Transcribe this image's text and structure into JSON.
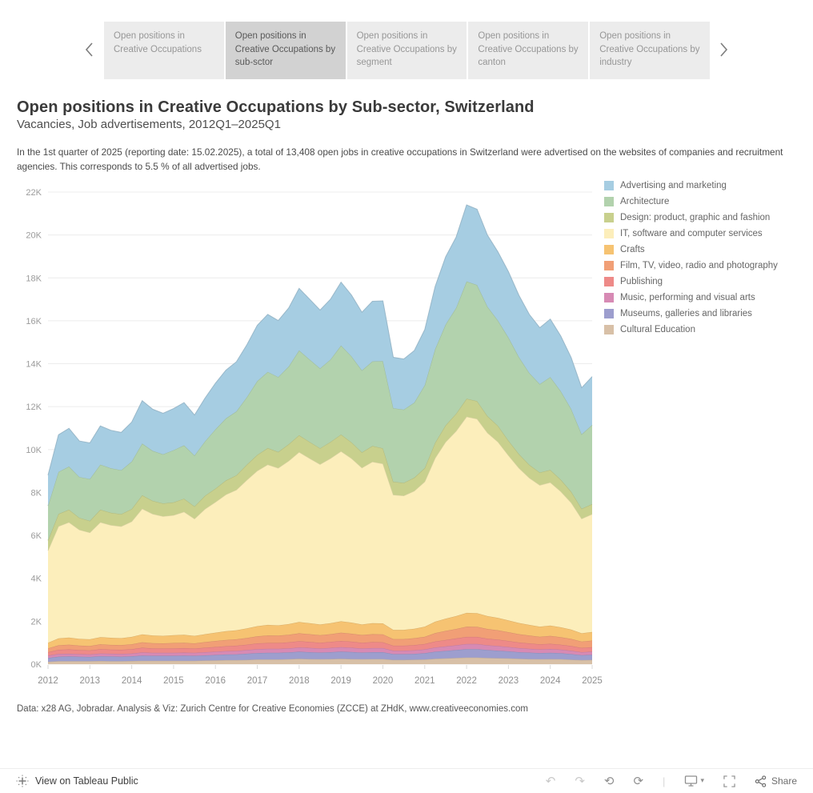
{
  "tab_bar": {
    "tabs": [
      {
        "label": "Open positions in Creative Occupations",
        "active": false
      },
      {
        "label": "Open positions in Creative Occupations by sub-sctor",
        "active": true
      },
      {
        "label": "Open positions in Creative Occupations by segment",
        "active": false
      },
      {
        "label": "Open positions in Creative Occupations by canton",
        "active": false
      },
      {
        "label": "Open positions in Creative Occupations by industry",
        "active": false
      }
    ]
  },
  "header": {
    "title": "Open positions in Creative Occupations by Sub-sector, Switzerland",
    "subtitle": "Vacancies, Job advertisements, 2012Q1–2025Q1",
    "description": "In the 1st quarter of 2025 (reporting date: 15.02.2025), a total of 13,408 open jobs in creative occupations in Switzerland were advertised on the websites of companies and recruitment agencies. This corresponds to 5.5 % of all advertised jobs."
  },
  "chart_data": {
    "type": "area",
    "stacked": true,
    "stack_note": "stacked bottom-to-top in reverse series order (Cultural Education at bottom, Advertising and marketing on top)",
    "title": "Open positions in Creative Occupations by Sub-sector, Switzerland",
    "xlabel": "",
    "ylabel": "",
    "ylim": [
      0,
      22000
    ],
    "y_tick_step": 2000,
    "y_tick_format": "thousands-K",
    "grid": true,
    "legend_position": "right",
    "x": [
      "2012Q1",
      "2012Q2",
      "2012Q3",
      "2012Q4",
      "2013Q1",
      "2013Q2",
      "2013Q3",
      "2013Q4",
      "2014Q1",
      "2014Q2",
      "2014Q3",
      "2014Q4",
      "2015Q1",
      "2015Q2",
      "2015Q3",
      "2015Q4",
      "2016Q1",
      "2016Q2",
      "2016Q3",
      "2016Q4",
      "2017Q1",
      "2017Q2",
      "2017Q3",
      "2017Q4",
      "2018Q1",
      "2018Q2",
      "2018Q3",
      "2018Q4",
      "2019Q1",
      "2019Q2",
      "2019Q3",
      "2019Q4",
      "2020Q1",
      "2020Q2",
      "2020Q3",
      "2020Q4",
      "2021Q1",
      "2021Q2",
      "2021Q3",
      "2021Q4",
      "2022Q1",
      "2022Q2",
      "2022Q3",
      "2022Q4",
      "2023Q1",
      "2023Q2",
      "2023Q3",
      "2023Q4",
      "2024Q1",
      "2024Q2",
      "2024Q3",
      "2024Q4",
      "2025Q1"
    ],
    "x_axis_years": [
      2012,
      2013,
      2014,
      2015,
      2016,
      2017,
      2018,
      2019,
      2020,
      2021,
      2022,
      2023,
      2024,
      2025
    ],
    "series": [
      {
        "name": "Advertising and marketing",
        "color": "#a6cde2",
        "values": [
          1430,
          1730,
          1780,
          1680,
          1680,
          1800,
          1770,
          1760,
          1840,
          2000,
          1940,
          1910,
          1940,
          1990,
          1890,
          2020,
          2150,
          2250,
          2310,
          2440,
          2600,
          2680,
          2630,
          2730,
          2890,
          2810,
          2720,
          2810,
          2950,
          2850,
          2710,
          2800,
          2810,
          2370,
          2360,
          2420,
          2590,
          2920,
          3150,
          3300,
          3570,
          3530,
          3330,
          3200,
          3070,
          2880,
          2730,
          2630,
          2700,
          2570,
          2400,
          2170,
          2250
        ]
      },
      {
        "name": "Architecture",
        "color": "#b2d2ad",
        "values": [
          1610,
          1960,
          2010,
          1900,
          1950,
          2100,
          2070,
          2050,
          2210,
          2410,
          2330,
          2290,
          2430,
          2490,
          2370,
          2530,
          2760,
          2890,
          2980,
          3140,
          3440,
          3550,
          3490,
          3620,
          3950,
          3840,
          3720,
          3840,
          4150,
          4010,
          3820,
          3940,
          4060,
          3430,
          3410,
          3500,
          3860,
          4360,
          4700,
          4930,
          5460,
          5410,
          5100,
          4900,
          4800,
          4520,
          4280,
          4120,
          4330,
          4120,
          3850,
          3470,
          3690
        ]
      },
      {
        "name": "Design: product, graphic and fashion",
        "color": "#c8d08d",
        "values": [
          480,
          580,
          590,
          560,
          550,
          590,
          580,
          570,
          580,
          630,
          610,
          600,
          600,
          610,
          580,
          620,
          630,
          660,
          680,
          720,
          740,
          770,
          750,
          780,
          790,
          770,
          750,
          770,
          780,
          750,
          720,
          740,
          720,
          610,
          600,
          620,
          640,
          720,
          780,
          810,
          840,
          830,
          780,
          750,
          690,
          650,
          610,
          590,
          580,
          550,
          510,
          460,
          470
        ]
      },
      {
        "name": "IT, software and computer services",
        "color": "#fceebb",
        "values": [
          4290,
          5220,
          5370,
          5080,
          4970,
          5350,
          5250,
          5210,
          5380,
          5850,
          5660,
          5570,
          5590,
          5730,
          5450,
          5830,
          6080,
          6360,
          6540,
          6910,
          7240,
          7470,
          7330,
          7600,
          7910,
          7680,
          7460,
          7680,
          7920,
          7650,
          7300,
          7520,
          7440,
          6290,
          6250,
          6420,
          6750,
          7620,
          8230,
          8620,
          9140,
          9050,
          8540,
          8200,
          7690,
          7220,
          6850,
          6590,
          6670,
          6330,
          5920,
          5340,
          5490
        ]
      },
      {
        "name": "Crafts",
        "color": "#f6c372",
        "values": [
          260,
          320,
          330,
          310,
          310,
          330,
          330,
          320,
          340,
          370,
          360,
          350,
          360,
          370,
          350,
          370,
          390,
          410,
          420,
          450,
          470,
          490,
          480,
          500,
          530,
          510,
          500,
          510,
          530,
          520,
          490,
          510,
          510,
          430,
          430,
          440,
          470,
          530,
          570,
          600,
          640,
          640,
          600,
          580,
          550,
          520,
          490,
          470,
          480,
          460,
          430,
          390,
          400
        ]
      },
      {
        "name": "Film, TV, video, radio and photography",
        "color": "#f19f76",
        "values": [
          180,
          210,
          220,
          210,
          210,
          230,
          220,
          220,
          230,
          250,
          240,
          240,
          250,
          250,
          240,
          260,
          280,
          290,
          300,
          310,
          330,
          350,
          340,
          350,
          370,
          360,
          350,
          360,
          390,
          370,
          360,
          370,
          370,
          310,
          310,
          320,
          340,
          390,
          420,
          440,
          480,
          470,
          450,
          430,
          410,
          390,
          370,
          350,
          370,
          350,
          330,
          290,
          310
        ]
      },
      {
        "name": "Publishing",
        "color": "#ee8a88",
        "values": [
          160,
          190,
          200,
          190,
          180,
          200,
          190,
          190,
          200,
          220,
          210,
          200,
          210,
          210,
          200,
          210,
          220,
          230,
          240,
          250,
          270,
          270,
          270,
          280,
          290,
          280,
          270,
          280,
          290,
          280,
          270,
          280,
          270,
          230,
          230,
          240,
          250,
          280,
          300,
          320,
          330,
          330,
          310,
          300,
          280,
          260,
          250,
          240,
          240,
          230,
          220,
          200,
          200
        ]
      },
      {
        "name": "Music, performing and visual arts",
        "color": "#d78ab4",
        "values": [
          110,
          130,
          130,
          120,
          120,
          130,
          130,
          130,
          130,
          150,
          140,
          140,
          140,
          140,
          140,
          150,
          150,
          160,
          160,
          170,
          180,
          190,
          190,
          190,
          200,
          200,
          190,
          200,
          200,
          200,
          190,
          190,
          190,
          160,
          160,
          170,
          180,
          200,
          210,
          220,
          240,
          240,
          220,
          220,
          200,
          190,
          180,
          170,
          180,
          170,
          160,
          140,
          150
        ]
      },
      {
        "name": "Museums, galleries and libraries",
        "color": "#9d9ece",
        "values": [
          180,
          210,
          220,
          210,
          200,
          220,
          220,
          210,
          220,
          240,
          230,
          230,
          230,
          240,
          230,
          240,
          250,
          260,
          270,
          290,
          300,
          310,
          310,
          320,
          330,
          320,
          310,
          320,
          340,
          330,
          310,
          320,
          320,
          270,
          270,
          270,
          290,
          330,
          350,
          370,
          390,
          390,
          370,
          350,
          330,
          310,
          300,
          290,
          290,
          280,
          260,
          230,
          240
        ]
      },
      {
        "name": "Cultural Education",
        "color": "#d8c0a7",
        "values": [
          110,
          140,
          140,
          140,
          140,
          150,
          140,
          140,
          150,
          160,
          160,
          160,
          160,
          160,
          160,
          170,
          180,
          190,
          190,
          200,
          220,
          220,
          220,
          230,
          250,
          240,
          230,
          240,
          250,
          240,
          230,
          240,
          240,
          200,
          200,
          210,
          220,
          250,
          270,
          290,
          310,
          310,
          290,
          280,
          270,
          250,
          240,
          230,
          240,
          230,
          210,
          190,
          200
        ]
      }
    ]
  },
  "footer": {
    "source": "Data: x28 AG, Jobradar. Analysis & Viz: Zurich Centre for Creative Economies (ZCCE) at ZHdK, www.creativeeconomies.com"
  },
  "toolbar": {
    "view_label": "View on Tableau Public",
    "share_label": "Share"
  }
}
